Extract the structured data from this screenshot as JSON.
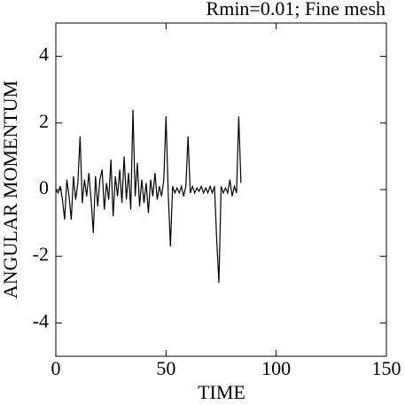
{
  "chart_data": {
    "type": "line",
    "title": "Rmin=0.01; Fine mesh",
    "x_label": "TIME",
    "y_label": "ANGULAR MOMENTUM",
    "x": [
      0,
      1,
      2,
      3,
      4,
      5,
      6,
      7,
      8,
      9,
      10,
      11,
      12,
      13,
      14,
      15,
      16,
      17,
      18,
      19,
      20,
      21,
      22,
      23,
      24,
      25,
      26,
      27,
      28,
      29,
      30,
      31,
      32,
      33,
      34,
      35,
      36,
      37,
      38,
      39,
      40,
      41,
      42,
      43,
      44,
      45,
      46,
      47,
      48,
      49,
      50,
      51,
      52,
      53,
      54,
      55,
      56,
      57,
      58,
      59,
      60,
      61,
      62,
      63,
      64,
      65,
      66,
      67,
      68,
      69,
      70,
      71,
      72,
      73,
      74,
      75,
      76,
      77,
      78,
      79,
      80,
      81,
      82,
      83,
      84
    ],
    "values": [
      0.0,
      -0.1,
      0.1,
      -0.3,
      -0.9,
      0.3,
      -0.2,
      -0.9,
      0.4,
      -0.3,
      0.2,
      1.6,
      -0.4,
      0.3,
      -0.2,
      0.5,
      -0.3,
      -1.3,
      0.4,
      -0.5,
      0.3,
      0.6,
      -0.6,
      0.2,
      -0.3,
      0.9,
      -0.8,
      0.4,
      -0.2,
      0.6,
      -0.4,
      1.0,
      -0.3,
      0.5,
      -0.6,
      2.4,
      -0.2,
      0.8,
      -0.5,
      0.3,
      -0.4,
      0.2,
      -0.7,
      0.3,
      -0.2,
      0.5,
      -0.3,
      0.1,
      -0.2,
      0.3,
      2.2,
      -0.1,
      -1.7,
      0.1,
      -0.1,
      0.05,
      -0.1,
      0.1,
      -0.2,
      0.1,
      1.6,
      -0.1,
      0.1,
      -0.1,
      0.05,
      -0.05,
      0.1,
      -0.1,
      0.05,
      -0.1,
      0.1,
      -0.1,
      0.1,
      -1.5,
      -2.8,
      0.1,
      -0.1,
      0.05,
      -0.1,
      0.3,
      -0.2,
      0.1,
      -0.1,
      2.2,
      0.2
    ],
    "color": "#000000",
    "xlim": [
      0,
      150
    ],
    "xticks": [
      0,
      50,
      100,
      150
    ],
    "ylim": [
      -5,
      5
    ],
    "yticks": [
      -4,
      -2,
      0,
      2,
      4
    ]
  }
}
